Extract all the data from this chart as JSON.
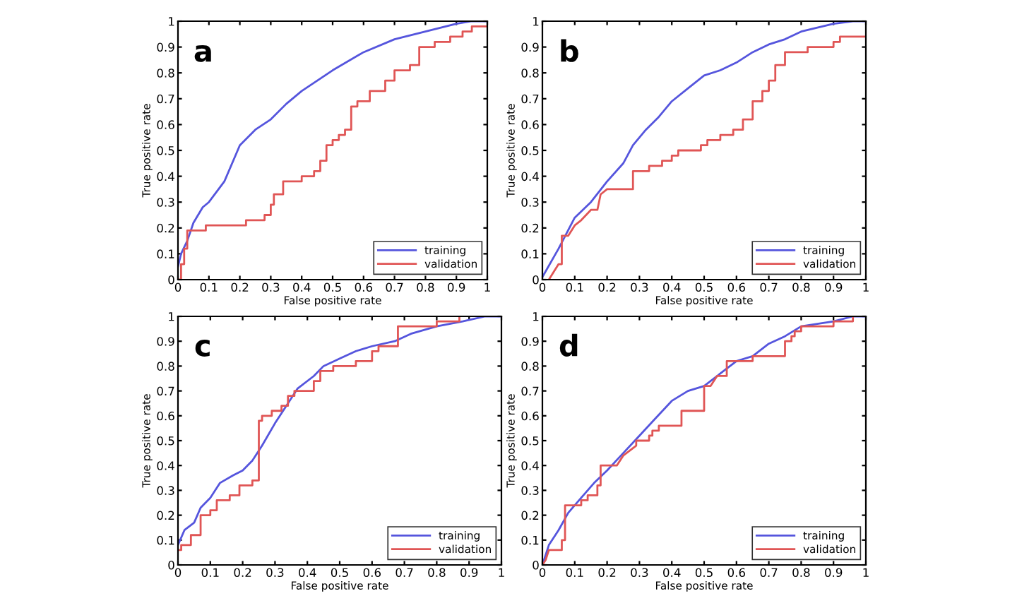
{
  "chart_data": [
    {
      "type": "line",
      "annotations": [
        "a"
      ],
      "xlabel": "False positive rate",
      "ylabel": "True positive rate",
      "xlim": [
        0,
        1
      ],
      "ylim": [
        0,
        1
      ],
      "xticks": [
        0,
        0.1,
        0.2,
        0.3,
        0.4,
        0.5,
        0.6,
        0.7,
        0.8,
        0.9,
        1
      ],
      "yticks": [
        0,
        0.1,
        0.2,
        0.3,
        0.4,
        0.5,
        0.6,
        0.7,
        0.8,
        0.9,
        1
      ],
      "grid": false,
      "legend": "bottom right",
      "marker": "none",
      "line_style": "solid",
      "series": [
        {
          "name": "training",
          "color": "#5555dd",
          "x": [
            0,
            0.01,
            0.03,
            0.05,
            0.08,
            0.1,
            0.15,
            0.2,
            0.25,
            0.3,
            0.35,
            0.4,
            0.5,
            0.6,
            0.7,
            0.8,
            0.9,
            0.95,
            1
          ],
          "values": [
            0.05,
            0.1,
            0.15,
            0.22,
            0.28,
            0.3,
            0.38,
            0.52,
            0.58,
            0.62,
            0.68,
            0.73,
            0.81,
            0.88,
            0.93,
            0.96,
            0.99,
            1,
            1
          ]
        },
        {
          "name": "validation",
          "color": "#e05555",
          "x": [
            0,
            0.01,
            0.01,
            0.02,
            0.02,
            0.03,
            0.03,
            0.09,
            0.09,
            0.22,
            0.22,
            0.28,
            0.28,
            0.3,
            0.3,
            0.31,
            0.31,
            0.34,
            0.34,
            0.4,
            0.4,
            0.44,
            0.44,
            0.46,
            0.46,
            0.48,
            0.48,
            0.5,
            0.5,
            0.52,
            0.52,
            0.54,
            0.54,
            0.56,
            0.56,
            0.58,
            0.58,
            0.62,
            0.62,
            0.67,
            0.67,
            0.7,
            0.7,
            0.75,
            0.75,
            0.78,
            0.78,
            0.83,
            0.83,
            0.88,
            0.88,
            0.92,
            0.92,
            0.95,
            0.95,
            1
          ],
          "values": [
            0,
            0,
            0.06,
            0.06,
            0.12,
            0.12,
            0.19,
            0.19,
            0.21,
            0.21,
            0.23,
            0.23,
            0.25,
            0.25,
            0.29,
            0.29,
            0.33,
            0.33,
            0.38,
            0.38,
            0.4,
            0.4,
            0.42,
            0.42,
            0.46,
            0.46,
            0.52,
            0.52,
            0.54,
            0.54,
            0.56,
            0.56,
            0.58,
            0.58,
            0.67,
            0.67,
            0.69,
            0.69,
            0.73,
            0.73,
            0.77,
            0.77,
            0.81,
            0.81,
            0.83,
            0.83,
            0.9,
            0.9,
            0.92,
            0.92,
            0.94,
            0.94,
            0.96,
            0.96,
            0.98,
            0.98
          ]
        }
      ]
    },
    {
      "type": "line",
      "annotations": [
        "b"
      ],
      "xlabel": "False positive rate",
      "ylabel": "True positive rate",
      "xlim": [
        0,
        1
      ],
      "ylim": [
        0,
        1
      ],
      "xticks": [
        0,
        0.1,
        0.2,
        0.3,
        0.4,
        0.5,
        0.6,
        0.7,
        0.8,
        0.9,
        1
      ],
      "yticks": [
        0,
        0.1,
        0.2,
        0.3,
        0.4,
        0.5,
        0.6,
        0.7,
        0.8,
        0.9,
        1
      ],
      "grid": false,
      "legend": "bottom right",
      "marker": "none",
      "line_style": "solid",
      "series": [
        {
          "name": "training",
          "color": "#5555dd",
          "x": [
            0,
            0.05,
            0.1,
            0.15,
            0.2,
            0.25,
            0.28,
            0.32,
            0.36,
            0.4,
            0.45,
            0.5,
            0.55,
            0.6,
            0.65,
            0.7,
            0.75,
            0.8,
            0.9,
            0.96,
            1
          ],
          "values": [
            0.01,
            0.12,
            0.24,
            0.3,
            0.38,
            0.45,
            0.52,
            0.58,
            0.63,
            0.69,
            0.74,
            0.79,
            0.81,
            0.84,
            0.88,
            0.91,
            0.93,
            0.96,
            0.99,
            1,
            1
          ]
        },
        {
          "name": "validation",
          "color": "#e05555",
          "x": [
            0.02,
            0.05,
            0.06,
            0.06,
            0.08,
            0.1,
            0.12,
            0.15,
            0.17,
            0.18,
            0.2,
            0.28,
            0.28,
            0.33,
            0.33,
            0.37,
            0.37,
            0.4,
            0.4,
            0.42,
            0.42,
            0.49,
            0.49,
            0.51,
            0.51,
            0.55,
            0.55,
            0.59,
            0.59,
            0.62,
            0.62,
            0.65,
            0.65,
            0.68,
            0.68,
            0.7,
            0.7,
            0.72,
            0.72,
            0.75,
            0.75,
            0.82,
            0.82,
            0.9,
            0.9,
            0.92,
            0.92,
            1
          ],
          "values": [
            0,
            0.06,
            0.06,
            0.17,
            0.17,
            0.21,
            0.23,
            0.27,
            0.27,
            0.33,
            0.35,
            0.35,
            0.42,
            0.42,
            0.44,
            0.44,
            0.46,
            0.46,
            0.48,
            0.48,
            0.5,
            0.5,
            0.52,
            0.52,
            0.54,
            0.54,
            0.56,
            0.56,
            0.58,
            0.58,
            0.62,
            0.62,
            0.69,
            0.69,
            0.73,
            0.73,
            0.77,
            0.77,
            0.83,
            0.83,
            0.88,
            0.88,
            0.9,
            0.9,
            0.92,
            0.92,
            0.94,
            0.94
          ]
        }
      ]
    },
    {
      "type": "line",
      "annotations": [
        "c"
      ],
      "xlabel": "False positive rate",
      "ylabel": "True positive rate",
      "xlim": [
        0,
        1
      ],
      "ylim": [
        0,
        1
      ],
      "xticks": [
        0,
        0.1,
        0.2,
        0.3,
        0.4,
        0.5,
        0.6,
        0.7,
        0.8,
        0.9,
        1
      ],
      "yticks": [
        0,
        0.1,
        0.2,
        0.3,
        0.4,
        0.5,
        0.6,
        0.7,
        0.8,
        0.9,
        1
      ],
      "grid": false,
      "legend": "bottom right",
      "marker": "none",
      "line_style": "solid",
      "series": [
        {
          "name": "training",
          "color": "#5555dd",
          "x": [
            0,
            0.02,
            0.05,
            0.07,
            0.1,
            0.13,
            0.17,
            0.2,
            0.23,
            0.26,
            0.3,
            0.33,
            0.37,
            0.42,
            0.45,
            0.5,
            0.55,
            0.6,
            0.67,
            0.72,
            0.8,
            0.88,
            0.95,
            1
          ],
          "values": [
            0.08,
            0.14,
            0.17,
            0.23,
            0.27,
            0.33,
            0.36,
            0.38,
            0.42,
            0.48,
            0.57,
            0.63,
            0.71,
            0.76,
            0.8,
            0.83,
            0.86,
            0.88,
            0.9,
            0.93,
            0.96,
            0.98,
            1,
            1
          ]
        },
        {
          "name": "validation",
          "color": "#e05555",
          "x": [
            0,
            0.01,
            0.01,
            0.04,
            0.04,
            0.07,
            0.07,
            0.1,
            0.1,
            0.12,
            0.12,
            0.16,
            0.16,
            0.19,
            0.19,
            0.23,
            0.23,
            0.25,
            0.25,
            0.26,
            0.26,
            0.29,
            0.29,
            0.32,
            0.32,
            0.34,
            0.34,
            0.36,
            0.36,
            0.42,
            0.42,
            0.44,
            0.44,
            0.48,
            0.48,
            0.55,
            0.55,
            0.6,
            0.6,
            0.62,
            0.62,
            0.68,
            0.68,
            0.8,
            0.8,
            0.87,
            0.87
          ],
          "values": [
            0.06,
            0.06,
            0.08,
            0.08,
            0.12,
            0.12,
            0.2,
            0.2,
            0.22,
            0.22,
            0.26,
            0.26,
            0.28,
            0.28,
            0.32,
            0.32,
            0.34,
            0.34,
            0.58,
            0.58,
            0.6,
            0.6,
            0.62,
            0.62,
            0.64,
            0.64,
            0.68,
            0.68,
            0.7,
            0.7,
            0.74,
            0.74,
            0.78,
            0.78,
            0.8,
            0.8,
            0.82,
            0.82,
            0.86,
            0.86,
            0.88,
            0.88,
            0.96,
            0.96,
            0.98,
            0.98,
            1
          ]
        }
      ]
    },
    {
      "type": "line",
      "annotations": [
        "d"
      ],
      "xlabel": "False positive rate",
      "ylabel": "True positive rate",
      "xlim": [
        0,
        1
      ],
      "ylim": [
        0,
        1
      ],
      "xticks": [
        0,
        0.1,
        0.2,
        0.3,
        0.4,
        0.5,
        0.6,
        0.7,
        0.8,
        0.9,
        1
      ],
      "yticks": [
        0,
        0.1,
        0.2,
        0.3,
        0.4,
        0.5,
        0.6,
        0.7,
        0.8,
        0.9,
        1
      ],
      "grid": false,
      "legend": "bottom right",
      "marker": "none",
      "line_style": "solid",
      "series": [
        {
          "name": "training",
          "color": "#5555dd",
          "x": [
            0,
            0.02,
            0.05,
            0.08,
            0.12,
            0.16,
            0.2,
            0.25,
            0.3,
            0.35,
            0.4,
            0.45,
            0.5,
            0.55,
            0.6,
            0.65,
            0.7,
            0.75,
            0.8,
            0.9,
            0.96,
            1
          ],
          "values": [
            0,
            0.08,
            0.14,
            0.21,
            0.27,
            0.33,
            0.38,
            0.45,
            0.52,
            0.59,
            0.66,
            0.7,
            0.72,
            0.77,
            0.82,
            0.84,
            0.89,
            0.92,
            0.96,
            0.98,
            1,
            1
          ]
        },
        {
          "name": "validation",
          "color": "#e05555",
          "x": [
            0,
            0.01,
            0.02,
            0.06,
            0.06,
            0.07,
            0.07,
            0.12,
            0.12,
            0.14,
            0.14,
            0.17,
            0.17,
            0.18,
            0.18,
            0.23,
            0.25,
            0.27,
            0.29,
            0.29,
            0.33,
            0.33,
            0.34,
            0.34,
            0.36,
            0.36,
            0.43,
            0.43,
            0.5,
            0.5,
            0.52,
            0.54,
            0.57,
            0.57,
            0.65,
            0.65,
            0.75,
            0.75,
            0.77,
            0.77,
            0.78,
            0.78,
            0.8,
            0.8,
            0.9,
            0.9,
            0.96,
            0.96
          ],
          "values": [
            0,
            0.02,
            0.06,
            0.06,
            0.1,
            0.1,
            0.24,
            0.24,
            0.26,
            0.26,
            0.28,
            0.28,
            0.32,
            0.32,
            0.4,
            0.4,
            0.44,
            0.46,
            0.48,
            0.5,
            0.5,
            0.52,
            0.52,
            0.54,
            0.54,
            0.56,
            0.56,
            0.62,
            0.62,
            0.72,
            0.72,
            0.76,
            0.76,
            0.82,
            0.82,
            0.84,
            0.84,
            0.9,
            0.9,
            0.92,
            0.92,
            0.94,
            0.94,
            0.96,
            0.96,
            0.98,
            0.98,
            1
          ]
        }
      ]
    }
  ]
}
